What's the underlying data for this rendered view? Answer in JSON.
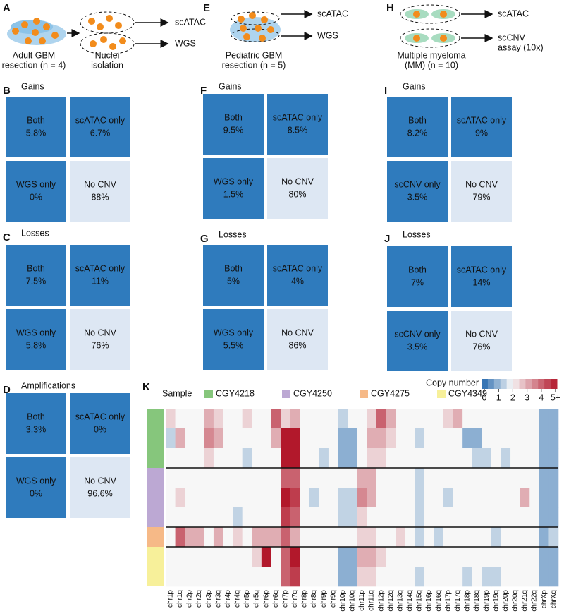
{
  "schematics": [
    {
      "letter": "A",
      "source": [
        "Adult GBM",
        "resection (n = 4)"
      ],
      "step": [
        "Nuclei",
        "isolation"
      ],
      "outputs": [
        [
          "scATAC"
        ],
        [
          "WGS"
        ]
      ]
    },
    {
      "letter": "E",
      "source": [
        "Pediatric GBM",
        "resection (n = 5)"
      ],
      "outputs": [
        [
          "scATAC"
        ],
        [
          "WGS"
        ]
      ]
    },
    {
      "letter": "H",
      "source": [
        "Multiple myeloma",
        "(MM) (n = 10)"
      ],
      "outputs": [
        [
          "scATAC"
        ],
        [
          "scCNV",
          "assay (10x)"
        ]
      ]
    }
  ],
  "grids": [
    {
      "letter": "B",
      "title": "Gains",
      "cells": [
        {
          "label": "Both",
          "value": "5.8%"
        },
        {
          "label": "scATAC only",
          "value": "6.7%"
        },
        {
          "label": "WGS only",
          "value": "0%"
        },
        {
          "label": "No CNV",
          "value": "88%"
        }
      ]
    },
    {
      "letter": "C",
      "title": "Losses",
      "cells": [
        {
          "label": "Both",
          "value": "7.5%"
        },
        {
          "label": "scATAC only",
          "value": "11%"
        },
        {
          "label": "WGS only",
          "value": "5.8%"
        },
        {
          "label": "No CNV",
          "value": "76%"
        }
      ]
    },
    {
      "letter": "D",
      "title": "Amplifications",
      "cells": [
        {
          "label": "Both",
          "value": "3.3%"
        },
        {
          "label": "scATAC only",
          "value": "0%"
        },
        {
          "label": "WGS only",
          "value": "0%"
        },
        {
          "label": "No CNV",
          "value": "96.6%"
        }
      ]
    },
    {
      "letter": "F",
      "title": "Gains",
      "cells": [
        {
          "label": "Both",
          "value": "9.5%"
        },
        {
          "label": "scATAC only",
          "value": "8.5%"
        },
        {
          "label": "WGS only",
          "value": "1.5%"
        },
        {
          "label": "No CNV",
          "value": "80%"
        }
      ]
    },
    {
      "letter": "G",
      "title": "Losses",
      "cells": [
        {
          "label": "Both",
          "value": "5%"
        },
        {
          "label": "scATAC only",
          "value": "4%"
        },
        {
          "label": "WGS only",
          "value": "5.5%"
        },
        {
          "label": "No CNV",
          "value": "86%"
        }
      ]
    },
    {
      "letter": "I",
      "title": "Gains",
      "cells": [
        {
          "label": "Both",
          "value": "8.2%"
        },
        {
          "label": "scATAC only",
          "value": "9%"
        },
        {
          "label": "scCNV  only",
          "value": "3.5%"
        },
        {
          "label": "No CNV",
          "value": "79%"
        }
      ]
    },
    {
      "letter": "J",
      "title": "Losses",
      "cells": [
        {
          "label": "Both",
          "value": "7%"
        },
        {
          "label": "scATAC only",
          "value": "14%"
        },
        {
          "label": "scCNV only",
          "value": "3.5%"
        },
        {
          "label": "No CNV",
          "value": "76%"
        }
      ]
    }
  ],
  "chart_data": {
    "type": "heatmap",
    "letter": "K",
    "sample_title": "Sample",
    "colorbar_title": "Copy number",
    "clim": [
      0,
      5
    ],
    "cticks": [
      0,
      1,
      2,
      3,
      4,
      {
        "value": 5,
        "label": "5+"
      }
    ],
    "columns": [
      "chr1p",
      "chr1q",
      "chr2p",
      "chr2q",
      "chr3p",
      "chr3q",
      "chr4p",
      "chr4q",
      "chr5p",
      "chr5q",
      "chr6p",
      "chr6q",
      "chr7p",
      "chr7q",
      "chr8p",
      "chr8q",
      "chr9p",
      "chr9q",
      "chr10p",
      "chr10q",
      "chr11p",
      "chr11q",
      "chr12p",
      "chr12q",
      "chr13q",
      "chr14q",
      "chr15q",
      "chr16p",
      "chr16q",
      "chr17p",
      "chr17q",
      "chr18p",
      "chr18q",
      "chr19p",
      "chr19q",
      "chr20p",
      "chr20q",
      "chr21q",
      "chr22q",
      "chrXp",
      "chrXq"
    ],
    "samples": [
      {
        "name": "CGY4218",
        "color": "#86c67c",
        "rows": [
          [
            2.5,
            2,
            2,
            2,
            3,
            2.5,
            2,
            2,
            2.5,
            2,
            2,
            4,
            2.5,
            3,
            2,
            2,
            2,
            2,
            1.5,
            2,
            2,
            2.5,
            4,
            3,
            2,
            2,
            2,
            2,
            2,
            2.5,
            3,
            2,
            2,
            2,
            2,
            2,
            2,
            2,
            2,
            1,
            1
          ],
          [
            1.5,
            3,
            2,
            2,
            3.5,
            3,
            2,
            2,
            2,
            2,
            2,
            3,
            5,
            5,
            2,
            2,
            2,
            2,
            1,
            1,
            2,
            3,
            3,
            2.5,
            2,
            2,
            1.5,
            2,
            2,
            2,
            2,
            1,
            1,
            2,
            2,
            2,
            2,
            2,
            2,
            1,
            1
          ],
          [
            2,
            2,
            2,
            2,
            2.5,
            2,
            2,
            2,
            1.5,
            2,
            2,
            2,
            5,
            5,
            2,
            2,
            1.5,
            2,
            1,
            1,
            2,
            2.5,
            2.5,
            2,
            2,
            2,
            2,
            2,
            2,
            2,
            2,
            2,
            1.5,
            1.5,
            2,
            1.5,
            2,
            2,
            2,
            1,
            1
          ]
        ]
      },
      {
        "name": "CGY4250",
        "color": "#bca8d3",
        "rows": [
          [
            2,
            2,
            2,
            2,
            2,
            2,
            2,
            2,
            2,
            2,
            2,
            2,
            4,
            4,
            2,
            2,
            2,
            2,
            2,
            2,
            3,
            3,
            2,
            2,
            2,
            2,
            1.5,
            2,
            2,
            2,
            2,
            2,
            2,
            2,
            2,
            2,
            2,
            2,
            2,
            1,
            1
          ],
          [
            2,
            2.5,
            2,
            2,
            2,
            2,
            2,
            2,
            2,
            2,
            2,
            2,
            5,
            4.5,
            2,
            1.5,
            2,
            2,
            1.5,
            1.5,
            3.5,
            3,
            2,
            2,
            2,
            2,
            1.5,
            2,
            2,
            1.5,
            2,
            2,
            2,
            2,
            2,
            2,
            2,
            3,
            2,
            1,
            1
          ],
          [
            2,
            2,
            2,
            2,
            2,
            2,
            2,
            1.5,
            2,
            2,
            2,
            2,
            4.5,
            4,
            2,
            2,
            2,
            2,
            1.5,
            1.5,
            2.5,
            2,
            2,
            2,
            2,
            2,
            1.5,
            2,
            2,
            2,
            2,
            2,
            2,
            2,
            2,
            2,
            2,
            2,
            2,
            1,
            1
          ]
        ]
      },
      {
        "name": "CGY4275",
        "color": "#f6b987",
        "rows": [
          [
            2,
            4,
            3,
            3,
            2,
            3,
            2,
            2.5,
            2,
            3,
            3,
            3,
            4,
            3,
            2,
            2,
            2,
            2,
            2,
            2,
            2.5,
            2.5,
            2,
            2,
            2.5,
            2,
            1.5,
            2,
            1.5,
            2,
            2,
            2,
            2,
            2,
            1.5,
            2,
            2,
            2,
            2,
            1,
            1.5
          ]
        ]
      },
      {
        "name": "CGY4349",
        "color": "#f7f09a",
        "rows": [
          [
            2,
            2,
            2,
            2,
            2,
            2,
            2,
            2,
            2,
            2.5,
            5,
            2,
            4,
            5,
            2,
            2,
            2,
            2,
            1,
            1,
            3,
            3,
            2.5,
            2,
            2,
            2,
            2,
            2,
            2,
            2,
            2,
            2,
            2,
            2,
            2,
            2,
            2,
            2,
            2,
            1,
            1
          ],
          [
            2,
            2,
            2,
            2,
            2,
            2,
            2,
            2,
            2,
            2,
            2,
            2,
            4,
            4.5,
            2,
            2,
            2,
            2,
            1,
            1,
            2.5,
            2.5,
            2,
            2,
            2,
            2,
            1.5,
            2,
            2,
            2,
            2,
            1.5,
            2,
            1.5,
            1.5,
            2,
            2,
            2,
            2,
            1,
            1
          ]
        ]
      }
    ]
  }
}
